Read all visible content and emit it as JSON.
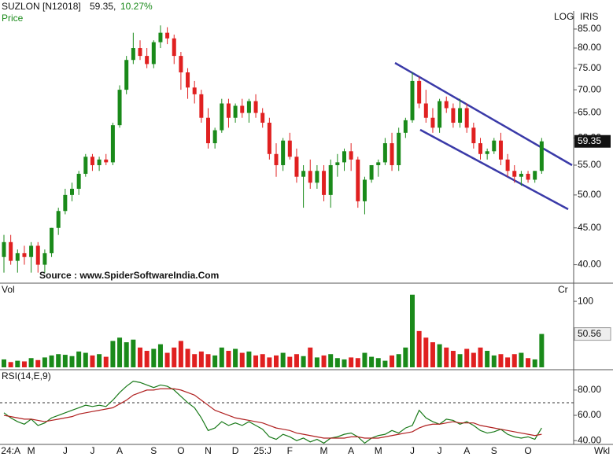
{
  "header": {
    "symbol": "SUZLON [N12018]",
    "price": "59.35,",
    "change": "10.27%",
    "scale": "LOG",
    "tool": "IRIS",
    "period": "Wkl"
  },
  "chart_data": [
    {
      "type": "candlestick",
      "title": "Price",
      "log_scale": true,
      "annotation": "Source : www.SpiderSoftwareIndia.Com",
      "up_color": "#1a8a1a",
      "down_color": "#e02020",
      "ylim": [
        37.9,
        88.7
      ],
      "yticks": [
        {
          "value": 40,
          "label": "40.00"
        },
        {
          "value": 45,
          "label": "45.00"
        },
        {
          "value": 50,
          "label": "50.00"
        },
        {
          "value": 55,
          "label": "55.00"
        },
        {
          "value": 60,
          "label": "60.00"
        },
        {
          "value": 65,
          "label": "65.00"
        },
        {
          "value": 70,
          "label": "70.00"
        },
        {
          "value": 75,
          "label": "75.00"
        },
        {
          "value": 80,
          "label": "80.00"
        },
        {
          "value": 85,
          "label": "85.00"
        }
      ],
      "open": [
        41,
        43,
        40.5,
        41.5,
        41,
        42.5,
        40,
        41.5,
        45,
        47.5,
        50,
        51,
        53.5,
        56.5,
        55,
        56,
        55.5,
        62.5,
        70,
        77,
        80,
        78,
        76,
        81.5,
        84,
        82.5,
        78,
        74,
        70.5,
        69,
        64,
        59,
        61.5,
        67,
        64,
        66.5,
        65,
        67.5,
        65,
        63,
        57,
        55,
        59.5,
        56.5,
        53,
        54,
        52,
        54,
        50,
        55,
        55.5,
        57.5,
        56,
        49,
        52.5,
        55,
        55.5,
        59,
        55,
        61,
        63.5,
        72,
        67,
        64,
        62,
        67.5,
        66,
        63,
        66,
        62,
        59,
        57,
        57.5,
        59.5,
        56,
        54,
        53,
        53.5,
        52.5,
        54
      ],
      "high": [
        44,
        44,
        42,
        42.5,
        43,
        43,
        42,
        45,
        48,
        51,
        52,
        54,
        57,
        57,
        56.5,
        57,
        63,
        71,
        78,
        84,
        82,
        80,
        82,
        86,
        85.5,
        83.5,
        79,
        75,
        72,
        70,
        66,
        62,
        68,
        68,
        67,
        68,
        68,
        69,
        66,
        64,
        59,
        60,
        61,
        58,
        55,
        56,
        55,
        55,
        56,
        57,
        58,
        59,
        56.5,
        53,
        55,
        56,
        60,
        61,
        62,
        64,
        74,
        73,
        70,
        66,
        68,
        68.5,
        67,
        68,
        67,
        63,
        60,
        58,
        60,
        61,
        57,
        55,
        54,
        54,
        54,
        60
      ],
      "low": [
        39,
        40,
        39,
        40,
        39,
        39,
        39,
        41,
        44,
        47,
        49,
        50,
        53,
        54,
        54,
        55,
        55,
        62,
        69,
        76,
        77,
        75,
        75,
        80,
        81,
        76,
        70,
        68,
        67,
        63,
        58,
        58,
        61,
        62,
        63,
        64,
        63,
        64,
        62,
        56,
        53,
        54,
        56,
        52,
        48,
        51,
        51,
        49,
        48,
        53,
        54,
        54,
        48,
        47,
        52,
        53,
        55,
        54,
        54,
        60,
        63,
        66,
        63,
        61,
        61,
        65,
        62,
        62,
        61,
        58,
        56,
        56,
        57,
        55,
        53,
        52,
        51.5,
        52,
        52,
        53.5
      ],
      "close": [
        43,
        40.5,
        41.5,
        41,
        42.5,
        40,
        41.5,
        45,
        47.5,
        50,
        51,
        53.5,
        56.5,
        55,
        56,
        55.5,
        62.5,
        70,
        77,
        80,
        78,
        76,
        81.5,
        84,
        82.5,
        78,
        74,
        70.5,
        69,
        64,
        59,
        61.5,
        67,
        64,
        66.5,
        65,
        67.5,
        65,
        63,
        57,
        55,
        59.5,
        56.5,
        53,
        54,
        52,
        54,
        50,
        55,
        55.5,
        57.5,
        56,
        49,
        52.5,
        55,
        55.5,
        59,
        55,
        61,
        63.5,
        72,
        67,
        64,
        62,
        67.5,
        66,
        63,
        66,
        62,
        59,
        57,
        57.5,
        59.5,
        56,
        54,
        53,
        53.5,
        52.5,
        54,
        59.35
      ]
    },
    {
      "type": "bar",
      "title": "Vol",
      "unit_label": "Cr",
      "ylim": [
        0,
        118
      ],
      "yticks": [
        100
      ],
      "values": [
        12,
        8,
        10,
        9,
        14,
        11,
        15,
        18,
        20,
        19,
        17,
        24,
        22,
        18,
        20,
        16,
        40,
        45,
        38,
        42,
        30,
        25,
        28,
        35,
        22,
        30,
        40,
        28,
        20,
        24,
        20,
        18,
        30,
        25,
        28,
        22,
        24,
        18,
        20,
        15,
        18,
        22,
        16,
        20,
        17,
        30,
        15,
        18,
        20,
        14,
        12,
        15,
        14,
        22,
        16,
        14,
        10,
        18,
        20,
        30,
        110,
        55,
        45,
        38,
        35,
        30,
        25,
        20,
        28,
        22,
        30,
        25,
        18,
        20,
        15,
        20,
        22,
        14,
        12,
        50.56
      ]
    },
    {
      "type": "line",
      "title": "RSI(14,E,9)",
      "ylim": [
        37,
        93
      ],
      "ref_line": 70,
      "yticks": [
        {
          "value": 40,
          "label": "40.00"
        },
        {
          "value": 60,
          "label": "60.00"
        },
        {
          "value": 80,
          "label": "80.00"
        }
      ],
      "categories": [
        null,
        "24:A",
        null,
        null,
        "M",
        null,
        null,
        null,
        null,
        "J",
        null,
        null,
        null,
        "J",
        null,
        null,
        null,
        "A",
        null,
        null,
        null,
        null,
        "S",
        null,
        null,
        null,
        "O",
        null,
        null,
        null,
        "N",
        null,
        null,
        null,
        "D",
        null,
        null,
        null,
        "25:J",
        null,
        null,
        null,
        "F",
        null,
        null,
        null,
        null,
        "M",
        null,
        null,
        null,
        "A",
        null,
        null,
        null,
        "M",
        null,
        null,
        null,
        null,
        "J",
        null,
        null,
        null,
        "J",
        null,
        null,
        null,
        "A",
        null,
        null,
        null,
        "S",
        null,
        null,
        null,
        null,
        "O",
        null,
        null
      ],
      "series": [
        {
          "color": "#1a7a1a",
          "values": [
            62,
            58,
            55,
            53,
            57,
            52,
            54,
            58,
            60,
            62,
            64,
            66,
            68,
            67,
            68,
            67,
            72,
            78,
            83,
            87,
            86,
            84,
            82,
            84,
            83,
            80,
            75,
            70,
            66,
            58,
            48,
            50,
            55,
            52,
            54,
            52,
            55,
            52,
            49,
            43,
            41,
            45,
            43,
            40,
            42,
            39,
            41,
            38,
            42,
            43,
            45,
            46,
            43,
            38,
            42,
            44,
            45,
            48,
            46,
            50,
            52,
            64,
            58,
            55,
            53,
            57,
            56,
            53,
            55,
            52,
            48,
            46,
            47,
            49,
            45,
            43,
            42,
            43,
            41,
            50
          ]
        },
        {
          "color": "#b02020",
          "values": [
            60,
            59,
            58,
            57,
            57,
            56,
            55,
            56,
            57,
            58,
            59,
            61,
            62,
            63,
            64,
            65,
            66,
            69,
            72,
            76,
            78,
            80,
            80,
            81,
            81,
            81,
            80,
            78,
            76,
            72,
            68,
            64,
            62,
            60,
            58,
            57,
            56,
            55,
            54,
            52,
            50,
            49,
            48,
            46,
            45,
            44,
            43,
            42,
            42,
            42,
            42,
            43,
            43,
            42,
            42,
            42,
            43,
            44,
            45,
            46,
            47,
            50,
            52,
            53,
            53,
            54,
            55,
            54,
            54,
            54,
            52,
            51,
            50,
            49,
            48,
            47,
            46,
            45,
            44,
            45
          ]
        }
      ]
    }
  ]
}
